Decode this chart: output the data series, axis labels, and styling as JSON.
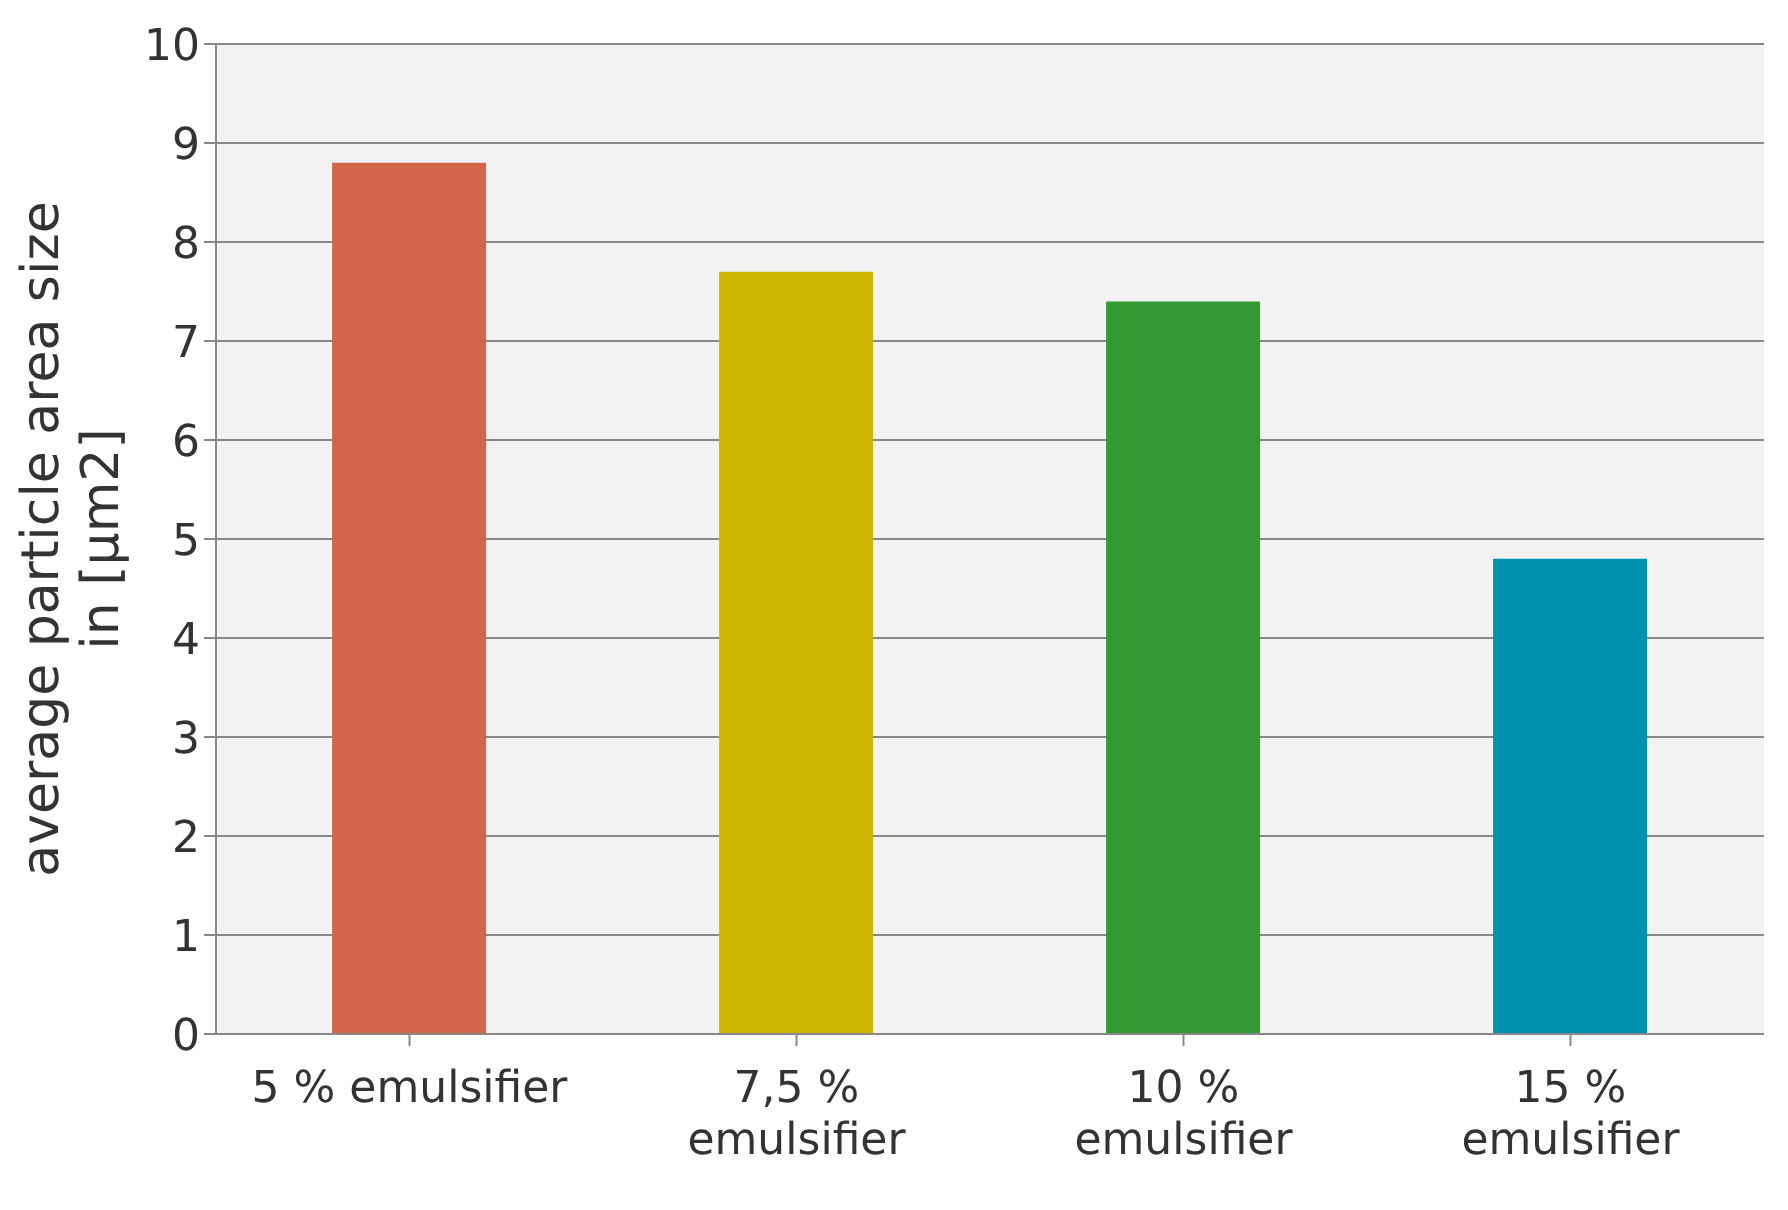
{
  "chart_data": {
    "type": "bar",
    "ylabel": "average particle area size in [µm2]",
    "categories": [
      "5 % emulsifier",
      "7,5 % emulsifier",
      "10 % emulsifier",
      "15 % emulsifier"
    ],
    "values": [
      8.8,
      7.7,
      7.4,
      4.8
    ],
    "colors": [
      "#d2654a",
      "#cdb400",
      "#339933",
      "#0090b0"
    ],
    "ylim": [
      0,
      10
    ],
    "yticks": [
      0,
      1,
      2,
      3,
      4,
      5,
      6,
      7,
      8,
      9,
      10
    ],
    "grid": "y",
    "legend": false
  }
}
